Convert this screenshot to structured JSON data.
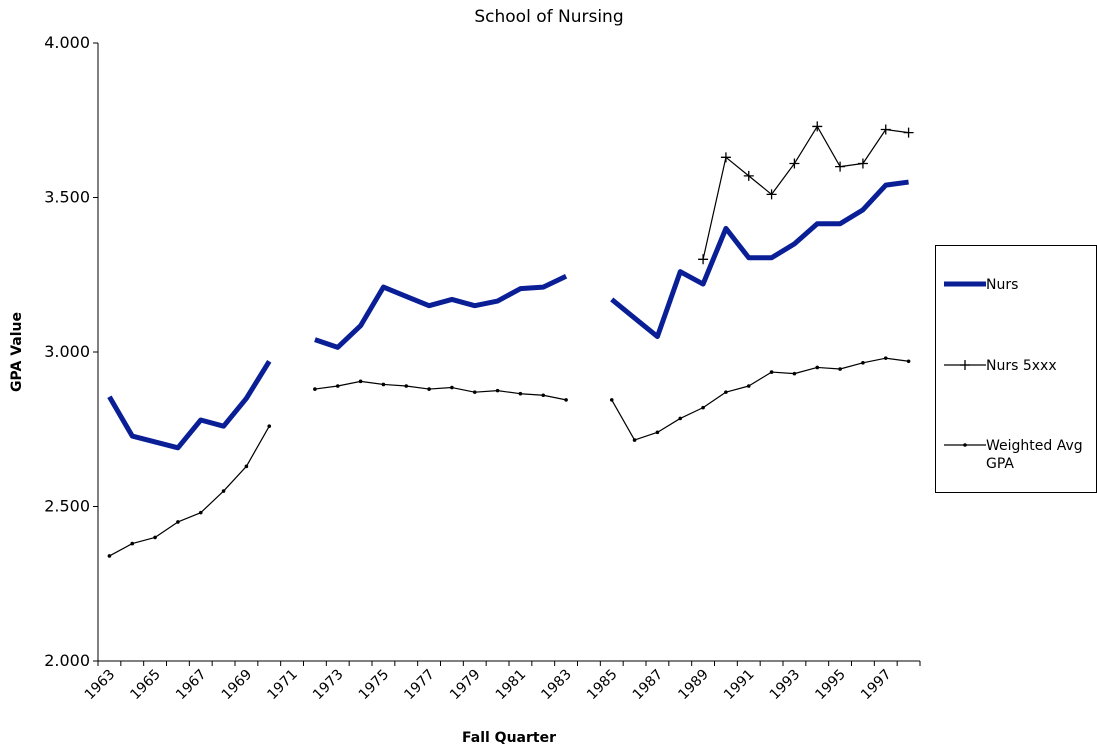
{
  "chart_data": {
    "type": "line",
    "title": "School of Nursing",
    "x_label": "Fall Quarter",
    "y_label": "GPA Value",
    "categories": [
      "1963",
      null,
      "1965",
      null,
      "1967",
      null,
      "1969",
      null,
      "1971",
      null,
      "1973",
      null,
      "1975",
      null,
      "1977",
      null,
      "1979",
      null,
      "1981",
      null,
      "1983",
      null,
      "1985",
      null,
      "1987",
      null,
      "1989",
      null,
      "1991",
      null,
      "1993",
      null,
      "1995",
      null,
      "1997",
      null
    ],
    "ylim": [
      2,
      4
    ],
    "yticks": [
      {
        "value": 2,
        "label": "2.000"
      },
      {
        "value": 2.5,
        "label": "2.500"
      },
      {
        "value": 3,
        "label": "3.000"
      },
      {
        "value": 3.5,
        "label": "3.500"
      },
      {
        "value": 4,
        "label": "4.000"
      }
    ],
    "legend": "right",
    "series": [
      {
        "name": "Nurs",
        "color": "#0a1e96",
        "values": [
          2.855,
          2.728,
          2.709,
          2.69,
          2.78,
          2.76,
          2.85,
          2.97,
          null,
          3.04,
          3.015,
          3.085,
          3.21,
          3.18,
          3.15,
          3.17,
          3.15,
          3.165,
          3.205,
          3.21,
          3.245,
          null,
          3.17,
          3.11,
          3.05,
          3.26,
          3.22,
          3.4,
          3.305,
          3.305,
          3.35,
          3.415,
          3.415,
          3.46,
          3.54,
          3.55
        ]
      },
      {
        "name": "Nurs 5xxx",
        "color": "#000000",
        "values": [
          null,
          null,
          null,
          null,
          null,
          null,
          null,
          null,
          null,
          null,
          null,
          null,
          null,
          null,
          null,
          null,
          null,
          null,
          null,
          null,
          null,
          null,
          null,
          null,
          null,
          null,
          3.3,
          3.63,
          3.57,
          3.51,
          3.61,
          3.73,
          3.6,
          3.61,
          3.72,
          3.71
        ]
      },
      {
        "name": "Weighted Avg GPA",
        "color": "#000000",
        "values": [
          2.34,
          2.38,
          2.4,
          2.45,
          2.48,
          2.55,
          2.63,
          2.76,
          null,
          2.88,
          2.89,
          2.905,
          2.895,
          2.89,
          2.88,
          2.885,
          2.87,
          2.875,
          2.865,
          2.86,
          2.845,
          null,
          2.845,
          2.715,
          2.74,
          2.785,
          2.82,
          2.87,
          2.89,
          2.935,
          2.93,
          2.95,
          2.945,
          2.965,
          2.98,
          2.97
        ]
      }
    ]
  }
}
